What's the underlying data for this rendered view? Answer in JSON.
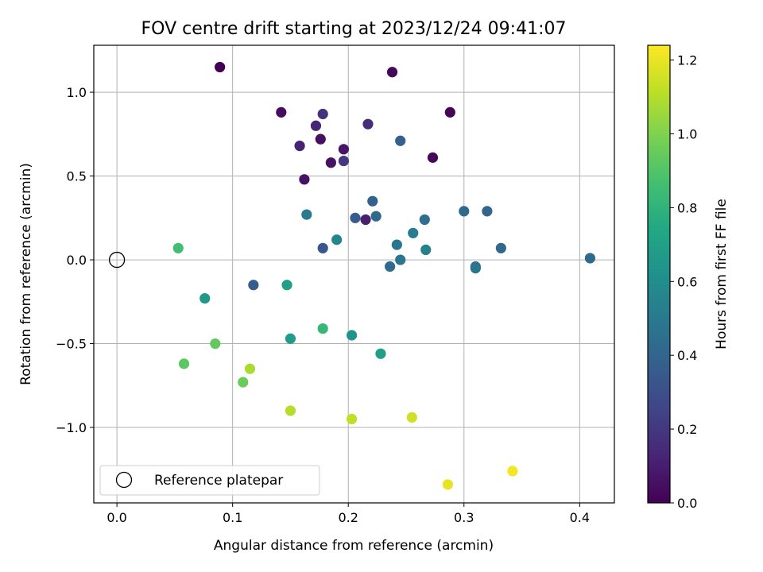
{
  "chart_data": {
    "type": "scatter",
    "title": "FOV centre drift starting at 2023/12/24 09:41:07",
    "xlabel": "Angular distance from reference (arcmin)",
    "ylabel": "Rotation from reference (arcmin)",
    "xlim": [
      -0.02,
      0.43
    ],
    "ylim": [
      -1.45,
      1.28
    ],
    "xticks": [
      0.0,
      0.1,
      0.2,
      0.3,
      0.4
    ],
    "xtick_labels": [
      "0.0",
      "0.1",
      "0.2",
      "0.3",
      "0.4"
    ],
    "yticks": [
      -1.0,
      -0.5,
      0.0,
      0.5,
      1.0
    ],
    "ytick_labels": [
      "−1.0",
      "−0.5",
      "0.0",
      "0.5",
      "1.0"
    ],
    "grid": true,
    "legend": {
      "placement": "lower-left",
      "entries": [
        {
          "label": "Reference platepar",
          "marker": "open-circle"
        }
      ]
    },
    "reference_point": {
      "x": 0.0,
      "y": 0.0
    },
    "colorbar": {
      "label": "Hours from first FF file",
      "colormap": "viridis",
      "range": [
        0.0,
        1.24
      ],
      "ticks": [
        0.0,
        0.2,
        0.4,
        0.6,
        0.8,
        1.0,
        1.2
      ],
      "tick_labels": [
        "0.0",
        "0.2",
        "0.4",
        "0.6",
        "0.8",
        "1.0",
        "1.2"
      ]
    },
    "points": [
      {
        "x": 0.089,
        "y": 1.15,
        "c": 0.0
      },
      {
        "x": 0.238,
        "y": 1.12,
        "c": 0.02
      },
      {
        "x": 0.142,
        "y": 0.88,
        "c": 0.04
      },
      {
        "x": 0.288,
        "y": 0.88,
        "c": 0.01
      },
      {
        "x": 0.178,
        "y": 0.87,
        "c": 0.17
      },
      {
        "x": 0.172,
        "y": 0.8,
        "c": 0.13
      },
      {
        "x": 0.217,
        "y": 0.81,
        "c": 0.16
      },
      {
        "x": 0.176,
        "y": 0.72,
        "c": 0.05
      },
      {
        "x": 0.245,
        "y": 0.71,
        "c": 0.38
      },
      {
        "x": 0.158,
        "y": 0.68,
        "c": 0.12
      },
      {
        "x": 0.196,
        "y": 0.66,
        "c": 0.07
      },
      {
        "x": 0.273,
        "y": 0.61,
        "c": 0.03
      },
      {
        "x": 0.185,
        "y": 0.58,
        "c": 0.06
      },
      {
        "x": 0.196,
        "y": 0.59,
        "c": 0.2
      },
      {
        "x": 0.162,
        "y": 0.48,
        "c": 0.06
      },
      {
        "x": 0.221,
        "y": 0.35,
        "c": 0.37
      },
      {
        "x": 0.164,
        "y": 0.27,
        "c": 0.5
      },
      {
        "x": 0.3,
        "y": 0.29,
        "c": 0.42
      },
      {
        "x": 0.32,
        "y": 0.29,
        "c": 0.4
      },
      {
        "x": 0.206,
        "y": 0.25,
        "c": 0.36
      },
      {
        "x": 0.215,
        "y": 0.24,
        "c": 0.11
      },
      {
        "x": 0.224,
        "y": 0.26,
        "c": 0.42
      },
      {
        "x": 0.266,
        "y": 0.24,
        "c": 0.45
      },
      {
        "x": 0.256,
        "y": 0.16,
        "c": 0.51
      },
      {
        "x": 0.19,
        "y": 0.12,
        "c": 0.56
      },
      {
        "x": 0.242,
        "y": 0.09,
        "c": 0.48
      },
      {
        "x": 0.178,
        "y": 0.07,
        "c": 0.34
      },
      {
        "x": 0.267,
        "y": 0.06,
        "c": 0.54
      },
      {
        "x": 0.332,
        "y": 0.07,
        "c": 0.42
      },
      {
        "x": 0.409,
        "y": 0.01,
        "c": 0.42
      },
      {
        "x": 0.245,
        "y": 0.0,
        "c": 0.48
      },
      {
        "x": 0.236,
        "y": -0.04,
        "c": 0.43
      },
      {
        "x": 0.31,
        "y": -0.04,
        "c": 0.46
      },
      {
        "x": 0.31,
        "y": -0.05,
        "c": 0.48
      },
      {
        "x": 0.053,
        "y": 0.07,
        "c": 0.86
      },
      {
        "x": 0.118,
        "y": -0.15,
        "c": 0.36
      },
      {
        "x": 0.147,
        "y": -0.15,
        "c": 0.7
      },
      {
        "x": 0.076,
        "y": -0.23,
        "c": 0.66
      },
      {
        "x": 0.178,
        "y": -0.41,
        "c": 0.82
      },
      {
        "x": 0.203,
        "y": -0.45,
        "c": 0.63
      },
      {
        "x": 0.15,
        "y": -0.47,
        "c": 0.68
      },
      {
        "x": 0.085,
        "y": -0.5,
        "c": 0.94
      },
      {
        "x": 0.228,
        "y": -0.56,
        "c": 0.7
      },
      {
        "x": 0.058,
        "y": -0.62,
        "c": 0.92
      },
      {
        "x": 0.115,
        "y": -0.65,
        "c": 1.08
      },
      {
        "x": 0.109,
        "y": -0.73,
        "c": 0.96
      },
      {
        "x": 0.15,
        "y": -0.9,
        "c": 1.1
      },
      {
        "x": 0.203,
        "y": -0.95,
        "c": 1.12
      },
      {
        "x": 0.255,
        "y": -0.94,
        "c": 1.15
      },
      {
        "x": 0.342,
        "y": -1.26,
        "c": 1.22
      },
      {
        "x": 0.286,
        "y": -1.34,
        "c": 1.2
      }
    ]
  }
}
